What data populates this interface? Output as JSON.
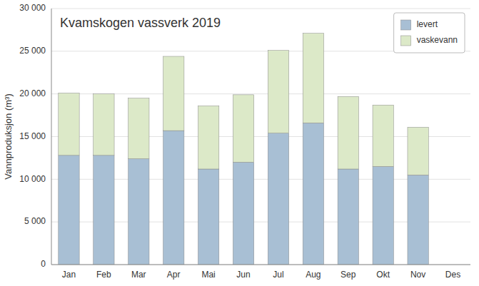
{
  "chart_data": {
    "type": "bar",
    "stacked": true,
    "title": "Kvamskogen vassverk 2019",
    "ylabel": "Vannproduksjon (m³)",
    "categories": [
      "Jan",
      "Feb",
      "Mar",
      "Apr",
      "Mai",
      "Jun",
      "Jul",
      "Aug",
      "Sep",
      "Okt",
      "Nov",
      "Des"
    ],
    "series": [
      {
        "name": "levert",
        "color": "#a8bfd4",
        "values": [
          12800,
          12800,
          12400,
          15700,
          11200,
          12000,
          15400,
          16600,
          11200,
          11500,
          10500,
          0
        ]
      },
      {
        "name": "vaskevann",
        "color": "#dce9c8",
        "values": [
          7300,
          7200,
          7100,
          8700,
          7400,
          7900,
          9700,
          10500,
          8500,
          7200,
          5600,
          0
        ]
      }
    ],
    "ylim": [
      0,
      30000
    ],
    "yticks": [
      0,
      {
        "value": 5000,
        "label": "5 000"
      },
      {
        "value": 10000,
        "label": "10 000"
      },
      {
        "value": 15000,
        "label": "15 000"
      },
      {
        "value": 20000,
        "label": "20 000"
      },
      {
        "value": 25000,
        "label": "25 000"
      },
      {
        "value": 30000,
        "label": "30 000"
      }
    ],
    "grid": true,
    "legend": "upper right"
  }
}
